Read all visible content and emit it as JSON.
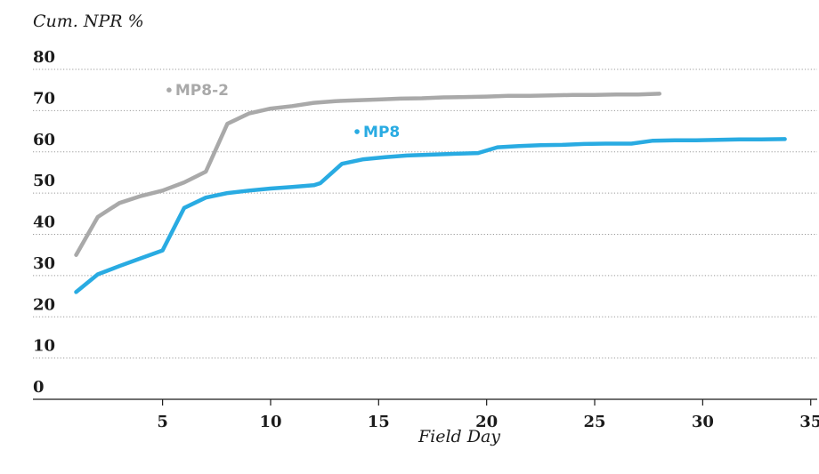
{
  "chart_data": {
    "type": "line",
    "ylabel": "Cum. NPR %",
    "xlabel": "Field Day",
    "xlim": [
      -1,
      35.3
    ],
    "ylim": [
      0,
      80
    ],
    "xticks": [
      5,
      10,
      15,
      20,
      25,
      30,
      35
    ],
    "yticks": [
      0,
      10,
      20,
      30,
      40,
      50,
      60,
      70,
      80
    ],
    "grid": true,
    "series": [
      {
        "name": "MP8-2",
        "color": "#a9a9a9",
        "x": [
          1,
          2,
          3,
          4,
          5,
          6,
          7,
          8,
          9,
          10,
          11,
          12,
          13,
          14,
          15,
          16,
          17,
          18,
          19,
          20,
          21,
          22,
          23,
          24,
          25,
          26,
          27,
          28
        ],
        "y": [
          35,
          44.2,
          47.6,
          49.3,
          50.6,
          52.6,
          55.2,
          66.8,
          69.3,
          70.5,
          71.1,
          71.9,
          72.3,
          72.5,
          72.7,
          72.9,
          73.0,
          73.2,
          73.3,
          73.4,
          73.6,
          73.6,
          73.7,
          73.8,
          73.8,
          73.9,
          73.9,
          74.1
        ],
        "label_anchor": [
          5.3,
          75
        ]
      },
      {
        "name": "MP8",
        "color": "#29abe2",
        "x": [
          1,
          2,
          3,
          4,
          5,
          6,
          7,
          8,
          9,
          10,
          11,
          12,
          12.3,
          13.3,
          14.3,
          15.3,
          16.3,
          17.3,
          18.3,
          19.6,
          20.5,
          21.5,
          22.5,
          23.5,
          24.5,
          25.5,
          26.7,
          27.7,
          28.7,
          29.7,
          30.7,
          31.7,
          32.7,
          33.8
        ],
        "y": [
          26,
          30.3,
          32.3,
          34.2,
          36.1,
          46.4,
          48.9,
          50.0,
          50.6,
          51.1,
          51.5,
          51.9,
          52.4,
          57.1,
          58.2,
          58.7,
          59.1,
          59.3,
          59.5,
          59.7,
          61.1,
          61.4,
          61.6,
          61.7,
          61.9,
          62.0,
          62.0,
          62.7,
          62.8,
          62.8,
          62.9,
          63.0,
          63.0,
          63.1
        ],
        "label_anchor": [
          14.0,
          64.9
        ]
      }
    ]
  }
}
